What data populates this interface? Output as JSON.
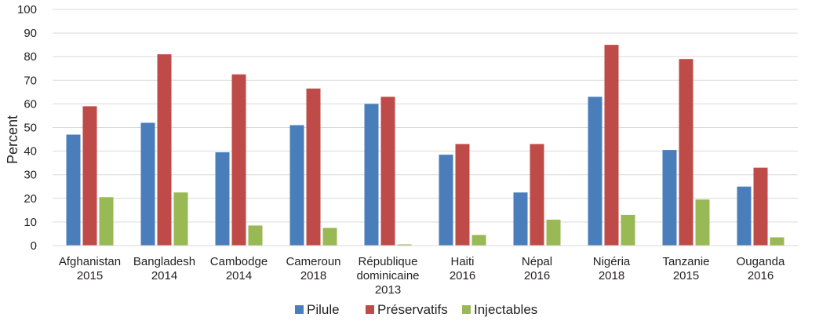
{
  "chart_data": {
    "type": "bar",
    "ylabel": "Percent",
    "xlabel": "",
    "ylim": [
      0,
      100
    ],
    "yticks": [
      0,
      10,
      20,
      30,
      40,
      50,
      60,
      70,
      80,
      90,
      100
    ],
    "grid": true,
    "legend_position": "bottom",
    "categories": [
      [
        "Afghanistan",
        "2015"
      ],
      [
        "Bangladesh",
        "2014"
      ],
      [
        "Cambodge",
        "2014"
      ],
      [
        "Cameroun",
        "2018"
      ],
      [
        "République",
        "dominicaine",
        "2013"
      ],
      [
        "Haiti",
        "2016"
      ],
      [
        "Népal",
        "2016"
      ],
      [
        "Nigéria",
        "2018"
      ],
      [
        "Tanzanie",
        "2015"
      ],
      [
        "Ouganda",
        "2016"
      ]
    ],
    "series": [
      {
        "name": "Pilule",
        "color": "#4a7ebb",
        "values": [
          47,
          52,
          39.5,
          51,
          60,
          38.5,
          22.5,
          63,
          40.5,
          25
        ]
      },
      {
        "name": "Préservatifs",
        "color": "#be4b48",
        "values": [
          59,
          81,
          72.5,
          66.5,
          63,
          43,
          43,
          85,
          79,
          33
        ]
      },
      {
        "name": "Injectables",
        "color": "#98b954",
        "values": [
          20.5,
          22.5,
          8.5,
          7.5,
          0.5,
          4.5,
          11,
          13,
          19.5,
          3.5
        ]
      }
    ]
  }
}
